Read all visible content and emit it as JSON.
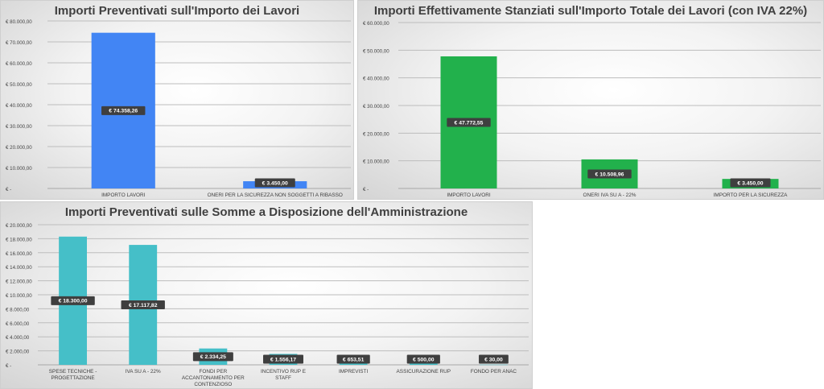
{
  "chart_data": [
    {
      "type": "bar",
      "title": "Importi Preventivati sull'Importo dei Lavori",
      "categories": [
        "IMPORTO LAVORI",
        "ONERI PER LA SICUREZZA NON SOGGETTI A RIBASSO"
      ],
      "values": [
        74358.26,
        3450.0
      ],
      "value_labels": [
        "€ 74.358,26",
        "€ 3.450,00"
      ],
      "color": "#4285f4",
      "ylim": [
        0,
        80000
      ],
      "yticks": [
        0,
        10000,
        20000,
        30000,
        40000,
        50000,
        60000,
        70000,
        80000
      ],
      "ytick_labels": [
        "€ -",
        "€ 10.000,00",
        "€ 20.000,00",
        "€ 30.000,00",
        "€ 40.000,00",
        "€ 50.000,00",
        "€ 60.000,00",
        "€ 70.000,00",
        "€ 80.000,00"
      ],
      "grid": true
    },
    {
      "type": "bar",
      "title": "Importi Effettivamente Stanziati sull'Importo Totale dei Lavori (con IVA 22%)",
      "categories": [
        "IMPORTO LAVORI",
        "ONERI IVA SU A - 22%",
        "IMPORTO PER LA SICUREZZA"
      ],
      "values": [
        47772.55,
        10508.96,
        3450.0
      ],
      "value_labels": [
        "€ 47.772,55",
        "€ 10.508,96",
        "€ 3.450,00"
      ],
      "color": "#22b14c",
      "ylim": [
        0,
        60000
      ],
      "yticks": [
        0,
        10000,
        20000,
        30000,
        40000,
        50000,
        60000
      ],
      "ytick_labels": [
        "€ -",
        "€ 10.000,00",
        "€ 20.000,00",
        "€ 30.000,00",
        "€ 40.000,00",
        "€ 50.000,00",
        "€ 60.000,00"
      ],
      "grid": true
    },
    {
      "type": "bar",
      "title": "Importi Preventivati sulle Somme a Disposizione dell'Amministrazione",
      "categories": [
        "SPESE TECNICHE - PROGETTAZIONE",
        "IVA SU A - 22%",
        "FONDI PER ACCANTONAMENTO PER CONTENZIOSO",
        "INCENTIVO RUP E STAFF",
        "IMPREVISTI",
        "ASSICURAZIONE RUP",
        "FONDO PER ANAC"
      ],
      "values": [
        18300.0,
        17117.82,
        2334.25,
        1556.17,
        653.51,
        500.0,
        30.0
      ],
      "value_labels": [
        "€ 18.300,00",
        "€ 17.117,82",
        "€ 2.334,25",
        "€ 1.556,17",
        "€ 653,51",
        "€ 500,00",
        "€ 30,00"
      ],
      "color": "#45bfc8",
      "ylim": [
        0,
        20000
      ],
      "yticks": [
        0,
        2000,
        4000,
        6000,
        8000,
        10000,
        12000,
        14000,
        16000,
        18000,
        20000
      ],
      "ytick_labels": [
        "€ -",
        "€ 2.000,00",
        "€ 4.000,00",
        "€ 6.000,00",
        "€ 8.000,00",
        "€ 10.000,00",
        "€ 12.000,00",
        "€ 14.000,00",
        "€ 16.000,00",
        "€ 18.000,00",
        "€ 20.000,00"
      ],
      "grid": true
    }
  ]
}
